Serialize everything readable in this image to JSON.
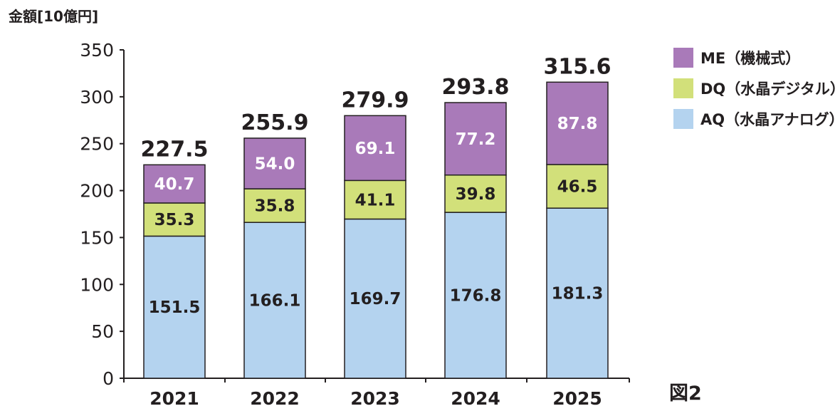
{
  "chart_data": {
    "type": "bar",
    "stacked": true,
    "unit_label": "金額[10億円]",
    "categories": [
      "2021",
      "2022",
      "2023",
      "2024",
      "2025"
    ],
    "series": [
      {
        "name": "AQ（水晶アナログ）",
        "color": "#b4d3ef",
        "values": [
          151.5,
          166.1,
          169.7,
          176.8,
          181.3
        ],
        "label_color": "#231f20"
      },
      {
        "name": "DQ（水晶デジタル）",
        "color": "#d2e07a",
        "values": [
          35.3,
          35.8,
          41.1,
          39.8,
          46.5
        ],
        "label_color": "#231f20"
      },
      {
        "name": "ME（機械式）",
        "color": "#a97ab9",
        "values": [
          40.7,
          54.0,
          69.1,
          77.2,
          87.8
        ],
        "label_color": "#ffffff"
      }
    ],
    "value_labels": [
      [
        "151.5",
        "166.1",
        "169.7",
        "176.8",
        "181.3"
      ],
      [
        "35.3",
        "35.8",
        "41.1",
        "39.8",
        "46.5"
      ],
      [
        "40.7",
        "54.0",
        "69.1",
        "77.2",
        "87.8"
      ]
    ],
    "totals": [
      "227.5",
      "255.9",
      "279.9",
      "293.8",
      "315.6"
    ],
    "ylim": [
      0,
      350
    ],
    "yticks": [
      0,
      50,
      100,
      150,
      200,
      250,
      300,
      350
    ],
    "ytick_labels": [
      "0",
      "50",
      "100",
      "150",
      "200",
      "250",
      "300",
      "350"
    ],
    "legend_order": [
      2,
      1,
      0
    ],
    "legend_position": "top-right",
    "grid": false,
    "xlabel": "",
    "ylabel": ""
  },
  "figure_label": "図2"
}
